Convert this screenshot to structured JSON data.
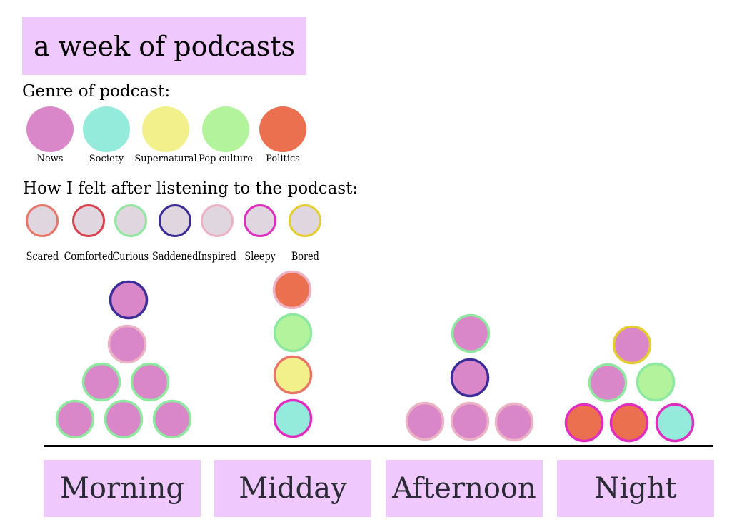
{
  "title": "a week of podcasts",
  "genre_legend": {
    "heading": "Genre of podcast:",
    "items": [
      {
        "label": "News",
        "color": "#d987c9"
      },
      {
        "label": "Society",
        "color": "#94ebdc"
      },
      {
        "label": "Supernatural",
        "color": "#f2f08a"
      },
      {
        "label": "Pop culture",
        "color": "#b2f39b"
      },
      {
        "label": "Politics",
        "color": "#eb7050"
      }
    ]
  },
  "mood_legend": {
    "heading": "How I felt after listening to the podcast:",
    "fill": "#e0d6df",
    "items": [
      {
        "label": "Scared",
        "color": "#e87668"
      },
      {
        "label": "Comforted",
        "color": "#d9434f"
      },
      {
        "label": "Curious",
        "color": "#8ee89f"
      },
      {
        "label": "Saddened",
        "color": "#3d2d98"
      },
      {
        "label": "Inspired",
        "color": "#ebb3c4"
      },
      {
        "label": "Sleepy",
        "color": "#e12dbf"
      },
      {
        "label": "Bored",
        "color": "#e3cd2f"
      }
    ]
  },
  "chart_data": {
    "type": "unit-stack",
    "categories": [
      "Morning",
      "Midday",
      "Afternoon",
      "Night"
    ],
    "groups": [
      {
        "time": "Morning",
        "podcasts": [
          {
            "genre": "News",
            "felt": "Curious"
          },
          {
            "genre": "News",
            "felt": "Curious"
          },
          {
            "genre": "News",
            "felt": "Curious"
          },
          {
            "genre": "News",
            "felt": "Curious"
          },
          {
            "genre": "News",
            "felt": "Curious"
          },
          {
            "genre": "News",
            "felt": "Inspired"
          },
          {
            "genre": "News",
            "felt": "Saddened"
          }
        ]
      },
      {
        "time": "Midday",
        "podcasts": [
          {
            "genre": "Society",
            "felt": "Sleepy"
          },
          {
            "genre": "Supernatural",
            "felt": "Scared"
          },
          {
            "genre": "Pop culture",
            "felt": "Curious"
          },
          {
            "genre": "Politics",
            "felt": "Inspired"
          }
        ]
      },
      {
        "time": "Afternoon",
        "podcasts": [
          {
            "genre": "News",
            "felt": "Inspired"
          },
          {
            "genre": "News",
            "felt": "Inspired"
          },
          {
            "genre": "News",
            "felt": "Inspired"
          },
          {
            "genre": "News",
            "felt": "Saddened"
          },
          {
            "genre": "News",
            "felt": "Curious"
          }
        ]
      },
      {
        "time": "Night",
        "podcasts": [
          {
            "genre": "Politics",
            "felt": "Sleepy"
          },
          {
            "genre": "Politics",
            "felt": "Sleepy"
          },
          {
            "genre": "Society",
            "felt": "Sleepy"
          },
          {
            "genre": "News",
            "felt": "Curious"
          },
          {
            "genre": "Pop culture",
            "felt": "Curious"
          },
          {
            "genre": "News",
            "felt": "Bored"
          }
        ]
      }
    ]
  }
}
